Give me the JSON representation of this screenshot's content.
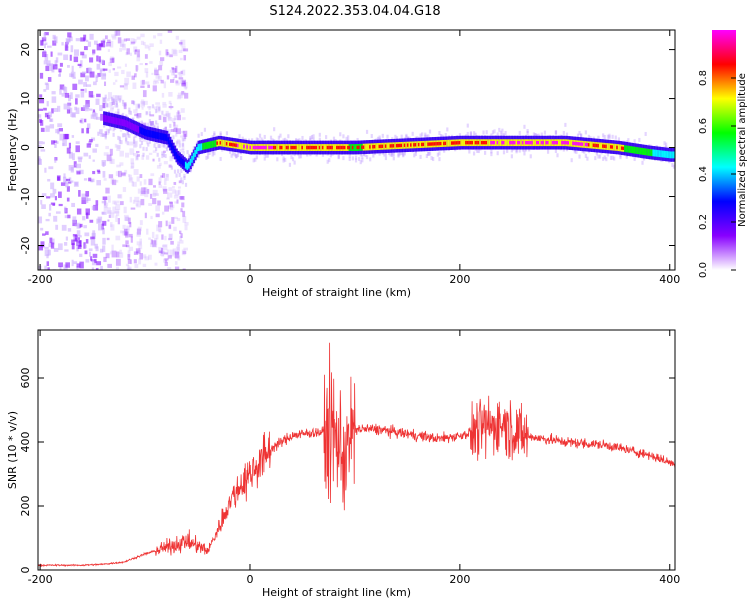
{
  "title": "S124.2022.353.04.04.G18",
  "colors": {
    "snr_line": "#ee3333",
    "spectrogram_trace": "#7b00ff",
    "axis": "#000000"
  },
  "chart_data": [
    {
      "type": "heatmap",
      "xlabel": "Height of straight line (km)",
      "ylabel": "Frequency (Hz)",
      "xlim": [
        -202,
        405
      ],
      "ylim": [
        -25,
        24
      ],
      "xticks": [
        -200,
        0,
        200,
        400
      ],
      "yticks": [
        -20,
        -10,
        0,
        10,
        20
      ],
      "grid": false,
      "colorbar": {
        "label": "Normalized spectral amplitude",
        "range": [
          0,
          1
        ],
        "ticks": [
          "0.0",
          "0.2",
          "0.4",
          "0.6",
          "0.8"
        ],
        "colormap": [
          "#ff00ff",
          "#ff0000",
          "#ffff00",
          "#00ff00",
          "#00ffff",
          "#0000ff",
          "#8800ff",
          "#ffffff"
        ]
      },
      "dominant_frequency_trace": {
        "x": [
          -140,
          -120,
          -100,
          -80,
          -70,
          -60,
          -50,
          -30,
          0,
          50,
          100,
          150,
          200,
          250,
          300,
          350,
          380,
          400
        ],
        "frequency": [
          6,
          5,
          3,
          2,
          -2,
          -4,
          0,
          1,
          0,
          0,
          0,
          0.5,
          1,
          1,
          1,
          0,
          -1,
          -1.5
        ],
        "amplitude": [
          0.2,
          0.25,
          0.3,
          0.35,
          0.4,
          0.5,
          0.6,
          0.9,
          0.95,
          0.9,
          0.85,
          0.9,
          0.9,
          0.95,
          0.95,
          0.9,
          0.7,
          0.5
        ]
      }
    },
    {
      "type": "line",
      "xlabel": "Height of straight line (km)",
      "ylabel": "SNR (10 * v/v)",
      "xlim": [
        -202,
        405
      ],
      "ylim": [
        0,
        750
      ],
      "xticks": [
        -200,
        0,
        200,
        400
      ],
      "yticks": [
        0,
        200,
        400,
        600
      ],
      "grid": false,
      "series": [
        {
          "x": [
            -202,
            -180,
            -160,
            -140,
            -120,
            -100,
            -80,
            -60,
            -40,
            -30,
            -20,
            -10,
            0,
            20,
            40,
            60,
            80,
            90,
            100,
            120,
            140,
            160,
            180,
            200,
            220,
            240,
            260,
            280,
            300,
            320,
            340,
            360,
            380,
            405
          ],
          "y": [
            15,
            15,
            15,
            18,
            25,
            50,
            70,
            90,
            60,
            130,
            210,
            260,
            300,
            380,
            420,
            430,
            430,
            350,
            440,
            440,
            430,
            420,
            410,
            420,
            440,
            460,
            420,
            410,
            400,
            395,
            390,
            375,
            360,
            330
          ]
        }
      ]
    }
  ]
}
